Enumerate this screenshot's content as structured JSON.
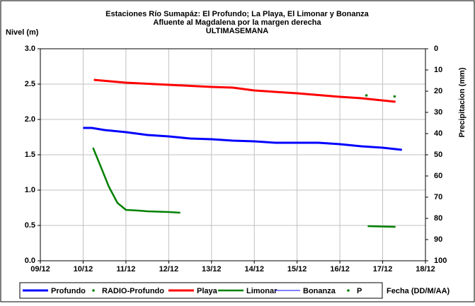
{
  "chart_data": {
    "type": "line",
    "title": [
      "Estaciones Río Sumapáz: El Profundo; La Playa, El Limonar y Bonanza",
      "Afluente al Magdalena por la margen derecha",
      "ULTIMASEMANA"
    ],
    "y_label": "Nivel (m)",
    "y2_label": "Precipitacion (mm)",
    "x_label": "Fecha (DD/M/AA)",
    "xlim": [
      9,
      18
    ],
    "xticks": [
      {
        "value": 9,
        "label": "09/12"
      },
      {
        "value": 10,
        "label": "10/12"
      },
      {
        "value": 11,
        "label": "11/12"
      },
      {
        "value": 12,
        "label": "12/12"
      },
      {
        "value": 13,
        "label": "13/12"
      },
      {
        "value": 14,
        "label": "14/12"
      },
      {
        "value": 15,
        "label": "15/12"
      },
      {
        "value": 16,
        "label": "16/12"
      },
      {
        "value": 17,
        "label": "17/12"
      },
      {
        "value": 18,
        "label": "18/12"
      }
    ],
    "ylim": [
      0,
      3
    ],
    "yticks": [
      {
        "value": 0,
        "label": "0.0"
      },
      {
        "value": 0.5,
        "label": "0.5"
      },
      {
        "value": 1,
        "label": "1.0"
      },
      {
        "value": 1.5,
        "label": "1.5"
      },
      {
        "value": 2,
        "label": "2.0"
      },
      {
        "value": 2.5,
        "label": "2.5"
      },
      {
        "value": 3,
        "label": "3.0"
      }
    ],
    "y2lim": [
      0,
      100
    ],
    "y2_inverted": true,
    "y2ticks": [
      0,
      10,
      20,
      30,
      40,
      50,
      60,
      70,
      80,
      90,
      100
    ],
    "grid": true,
    "legend": "bottom",
    "series": [
      {
        "name": "Profundo",
        "color": "#0000ff",
        "style": "line",
        "width": 3,
        "x": [
          10.0,
          10.2,
          10.5,
          11,
          11.5,
          12,
          12.5,
          13,
          13.5,
          14,
          14.5,
          15,
          15.5,
          16,
          16.5,
          17,
          17.45
        ],
        "values": [
          1.88,
          1.88,
          1.85,
          1.82,
          1.78,
          1.76,
          1.73,
          1.72,
          1.7,
          1.69,
          1.67,
          1.67,
          1.67,
          1.65,
          1.62,
          1.6,
          1.57
        ]
      },
      {
        "name": "RADIO-Profundo",
        "color": "#008000",
        "style": "dots",
        "x": [],
        "values": []
      },
      {
        "name": "Playa",
        "color": "#ff0000",
        "style": "line",
        "width": 3,
        "x": [
          10.25,
          11,
          12,
          13,
          13.5,
          14,
          15,
          16,
          16.5,
          17.3
        ],
        "values": [
          2.56,
          2.52,
          2.49,
          2.46,
          2.45,
          2.41,
          2.37,
          2.32,
          2.3,
          2.25
        ]
      },
      {
        "name": "Limonar",
        "color": "#008000",
        "style": "line",
        "width": 2.5,
        "x": [
          10.23,
          10.4,
          10.6,
          10.8,
          11,
          11.3,
          11.5,
          12,
          12.27,
          14,
          16.65,
          17.3
        ],
        "values": [
          1.6,
          1.35,
          1.05,
          0.82,
          0.72,
          0.71,
          0.7,
          0.69,
          0.68,
          null,
          0.49,
          0.48
        ]
      },
      {
        "name": "Bonanza",
        "color": "#0000ff",
        "style": "line",
        "width": 1,
        "x": [],
        "values": []
      },
      {
        "name": "P",
        "color": "#008000",
        "style": "dots",
        "axis": "y2",
        "x": [
          16.62,
          17.28
        ],
        "values": [
          22,
          22.5
        ]
      }
    ]
  }
}
